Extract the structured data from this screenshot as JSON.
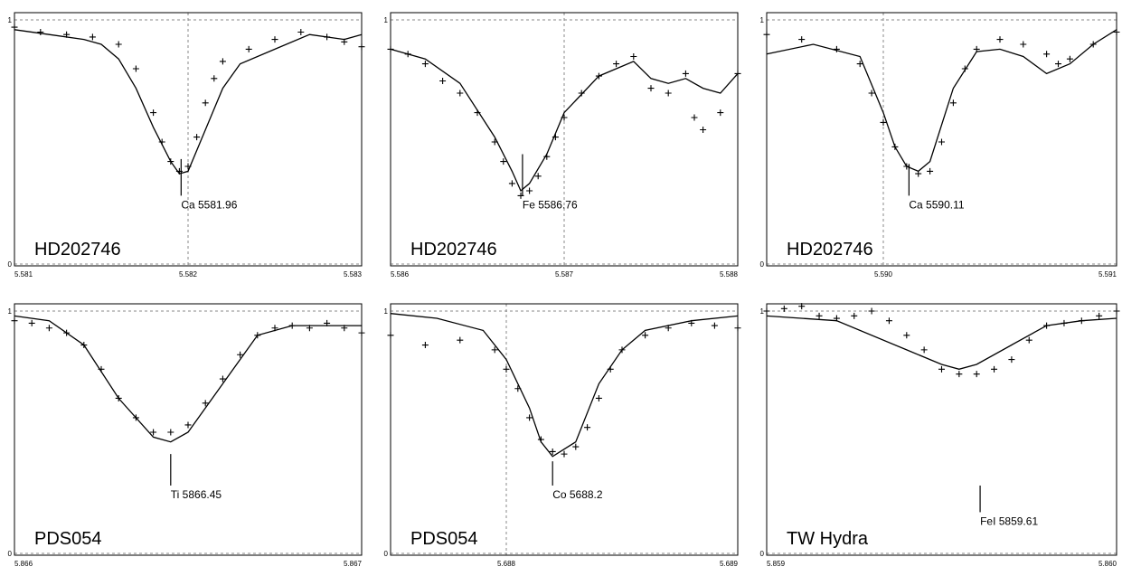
{
  "chart_data": [
    {
      "type": "line",
      "star": "HD202746",
      "xlim": [
        5.581,
        5.583
      ],
      "ylim": [
        0,
        1
      ],
      "x_ticks": [
        "5.581",
        "5.582",
        "5.583"
      ],
      "y_ticks": [
        "0",
        "1"
      ],
      "vgrid": [
        5.582
      ],
      "line_label": "Ca 5581.96",
      "marker": {
        "x": 5.58196,
        "y_top": 0.43,
        "y_bot": 0.28
      },
      "series": [
        {
          "kind": "model",
          "x": [
            5.581,
            5.5812,
            5.5814,
            5.5815,
            5.5816,
            5.5817,
            5.5818,
            5.5819,
            5.58195,
            5.582,
            5.5821,
            5.5822,
            5.5823,
            5.5825,
            5.5827,
            5.5829,
            5.583
          ],
          "y": [
            0.96,
            0.94,
            0.92,
            0.9,
            0.84,
            0.72,
            0.56,
            0.42,
            0.37,
            0.38,
            0.55,
            0.72,
            0.82,
            0.88,
            0.94,
            0.92,
            0.94
          ]
        },
        {
          "kind": "observed",
          "x": [
            5.581,
            5.58115,
            5.5813,
            5.58145,
            5.5816,
            5.5817,
            5.5818,
            5.58185,
            5.5819,
            5.58195,
            5.582,
            5.58205,
            5.5821,
            5.58215,
            5.5822,
            5.58235,
            5.5825,
            5.58265,
            5.5828,
            5.5829,
            5.583
          ],
          "y": [
            0.97,
            0.95,
            0.94,
            0.93,
            0.9,
            0.8,
            0.62,
            0.5,
            0.42,
            0.38,
            0.4,
            0.52,
            0.66,
            0.76,
            0.83,
            0.88,
            0.92,
            0.95,
            0.93,
            0.91,
            0.89
          ]
        }
      ]
    },
    {
      "type": "line",
      "star": "HD202746",
      "xlim": [
        5.586,
        5.588
      ],
      "ylim": [
        0,
        1
      ],
      "x_ticks": [
        "5.586",
        "5.587",
        "5.588"
      ],
      "y_ticks": [
        "1"
      ],
      "vgrid": [
        5.587
      ],
      "line_label": "Fe 5586.76",
      "marker": {
        "x": 5.58676,
        "y_top": 0.45,
        "y_bot": 0.28
      },
      "series": [
        {
          "kind": "model",
          "x": [
            5.586,
            5.5862,
            5.5864,
            5.5866,
            5.5867,
            5.58675,
            5.5868,
            5.5869,
            5.587,
            5.5872,
            5.5874,
            5.5875,
            5.5876,
            5.5877,
            5.5878,
            5.5879,
            5.588
          ],
          "y": [
            0.88,
            0.84,
            0.74,
            0.52,
            0.38,
            0.3,
            0.33,
            0.45,
            0.62,
            0.77,
            0.83,
            0.76,
            0.74,
            0.76,
            0.72,
            0.7,
            0.78
          ]
        },
        {
          "kind": "observed",
          "x": [
            5.586,
            5.5861,
            5.5862,
            5.5863,
            5.5864,
            5.5865,
            5.5866,
            5.58665,
            5.5867,
            5.58675,
            5.5868,
            5.58685,
            5.5869,
            5.58695,
            5.587,
            5.5871,
            5.5872,
            5.5873,
            5.5874,
            5.5875,
            5.5876,
            5.5877,
            5.58775,
            5.5878,
            5.5879,
            5.588
          ],
          "y": [
            0.88,
            0.86,
            0.82,
            0.75,
            0.7,
            0.62,
            0.5,
            0.42,
            0.33,
            0.28,
            0.3,
            0.36,
            0.44,
            0.52,
            0.6,
            0.7,
            0.77,
            0.82,
            0.85,
            0.72,
            0.7,
            0.78,
            0.6,
            0.55,
            0.62,
            0.78
          ]
        }
      ]
    },
    {
      "type": "line",
      "star": "HD202746",
      "xlim": [
        5.5895,
        5.591
      ],
      "ylim": [
        0,
        1
      ],
      "x_ticks": [
        "5.590",
        "5.591"
      ],
      "y_ticks": [
        "0",
        "1"
      ],
      "vgrid": [
        5.59
      ],
      "line_label": "Ca 5590.11",
      "marker": {
        "x": 5.59011,
        "y_top": 0.41,
        "y_bot": 0.28
      },
      "series": [
        {
          "kind": "model",
          "x": [
            5.5895,
            5.5897,
            5.5899,
            5.59,
            5.59005,
            5.5901,
            5.59015,
            5.5902,
            5.5903,
            5.5904,
            5.5905,
            5.5906,
            5.5907,
            5.5908,
            5.5909,
            5.591
          ],
          "y": [
            0.86,
            0.9,
            0.85,
            0.62,
            0.48,
            0.4,
            0.38,
            0.42,
            0.72,
            0.87,
            0.88,
            0.85,
            0.78,
            0.82,
            0.9,
            0.96
          ]
        },
        {
          "kind": "observed",
          "x": [
            5.5895,
            5.58965,
            5.5898,
            5.5899,
            5.58995,
            5.59,
            5.59005,
            5.5901,
            5.59015,
            5.5902,
            5.59025,
            5.5903,
            5.59035,
            5.5904,
            5.5905,
            5.5906,
            5.5907,
            5.59075,
            5.5908,
            5.5909,
            5.591
          ],
          "y": [
            0.94,
            0.92,
            0.88,
            0.82,
            0.7,
            0.58,
            0.48,
            0.4,
            0.37,
            0.38,
            0.5,
            0.66,
            0.8,
            0.88,
            0.92,
            0.9,
            0.86,
            0.82,
            0.84,
            0.9,
            0.95
          ]
        }
      ]
    },
    {
      "type": "line",
      "star": "PDS054",
      "xlim": [
        5.866,
        5.867
      ],
      "ylim": [
        0,
        1
      ],
      "x_ticks": [
        "5.866",
        "5.867"
      ],
      "y_ticks": [
        "0",
        "1"
      ],
      "vgrid": [],
      "line_label": "Ti 5866.45",
      "marker": {
        "x": 5.86645,
        "y_top": 0.41,
        "y_bot": 0.28
      },
      "series": [
        {
          "kind": "model",
          "x": [
            5.866,
            5.8661,
            5.8662,
            5.8663,
            5.8664,
            5.86645,
            5.8665,
            5.8666,
            5.8667,
            5.8668,
            5.8669,
            5.867
          ],
          "y": [
            0.98,
            0.96,
            0.86,
            0.64,
            0.48,
            0.46,
            0.5,
            0.7,
            0.9,
            0.94,
            0.94,
            0.94
          ]
        },
        {
          "kind": "observed",
          "x": [
            5.866,
            5.86605,
            5.8661,
            5.86615,
            5.8662,
            5.86625,
            5.8663,
            5.86635,
            5.8664,
            5.86645,
            5.8665,
            5.86655,
            5.8666,
            5.86665,
            5.8667,
            5.86675,
            5.8668,
            5.86685,
            5.8669,
            5.86695,
            5.867
          ],
          "y": [
            0.96,
            0.95,
            0.93,
            0.91,
            0.86,
            0.76,
            0.64,
            0.56,
            0.5,
            0.5,
            0.53,
            0.62,
            0.72,
            0.82,
            0.9,
            0.93,
            0.94,
            0.93,
            0.95,
            0.93,
            0.91
          ]
        }
      ]
    },
    {
      "type": "line",
      "star": "PDS054",
      "xlim": [
        5.6875,
        5.689
      ],
      "ylim": [
        0,
        1
      ],
      "x_ticks": [
        "5.688",
        "5.689"
      ],
      "y_ticks": [
        "0",
        "1"
      ],
      "vgrid": [
        5.688
      ],
      "line_label": "Co 5688.2",
      "marker": {
        "x": 5.6882,
        "y_top": 0.38,
        "y_bot": 0.28
      },
      "series": [
        {
          "kind": "model",
          "x": [
            5.6875,
            5.6877,
            5.6879,
            5.688,
            5.6881,
            5.68815,
            5.6882,
            5.6883,
            5.6884,
            5.6885,
            5.6886,
            5.6888,
            5.689
          ],
          "y": [
            0.99,
            0.97,
            0.92,
            0.8,
            0.6,
            0.46,
            0.4,
            0.46,
            0.7,
            0.84,
            0.92,
            0.96,
            0.98
          ]
        },
        {
          "kind": "observed",
          "x": [
            5.6875,
            5.68765,
            5.6878,
            5.68795,
            5.688,
            5.68805,
            5.6881,
            5.68815,
            5.6882,
            5.68825,
            5.6883,
            5.68835,
            5.6884,
            5.68845,
            5.6885,
            5.6886,
            5.6887,
            5.6888,
            5.6889,
            5.689
          ],
          "y": [
            0.9,
            0.86,
            0.88,
            0.84,
            0.76,
            0.68,
            0.56,
            0.47,
            0.42,
            0.41,
            0.44,
            0.52,
            0.64,
            0.76,
            0.84,
            0.9,
            0.93,
            0.95,
            0.94,
            0.93
          ]
        }
      ]
    },
    {
      "type": "line",
      "star": "TW Hydra",
      "xlim": [
        5.859,
        5.86
      ],
      "ylim": [
        0,
        1
      ],
      "x_ticks": [
        "5.859",
        "5.860"
      ],
      "y_ticks": [
        "0",
        "1"
      ],
      "vgrid": [],
      "line_label": "FeI 5859.61",
      "marker": {
        "x": 5.85961,
        "y_top": 0.28,
        "y_bot": 0.17
      },
      "series": [
        {
          "kind": "model",
          "x": [
            5.859,
            5.8592,
            5.8594,
            5.8595,
            5.85955,
            5.8596,
            5.8597,
            5.8598,
            5.8599,
            5.86
          ],
          "y": [
            0.98,
            0.96,
            0.84,
            0.78,
            0.76,
            0.78,
            0.86,
            0.94,
            0.96,
            0.97
          ]
        },
        {
          "kind": "observed",
          "x": [
            5.859,
            5.85905,
            5.8591,
            5.85915,
            5.8592,
            5.85925,
            5.8593,
            5.85935,
            5.8594,
            5.85945,
            5.8595,
            5.85955,
            5.8596,
            5.85965,
            5.8597,
            5.85975,
            5.8598,
            5.85985,
            5.8599,
            5.85995,
            5.86
          ],
          "y": [
            1.0,
            1.01,
            1.02,
            0.98,
            0.97,
            0.98,
            1.0,
            0.96,
            0.9,
            0.84,
            0.76,
            0.74,
            0.74,
            0.76,
            0.8,
            0.88,
            0.94,
            0.95,
            0.96,
            0.98,
            1.0
          ]
        }
      ]
    }
  ]
}
